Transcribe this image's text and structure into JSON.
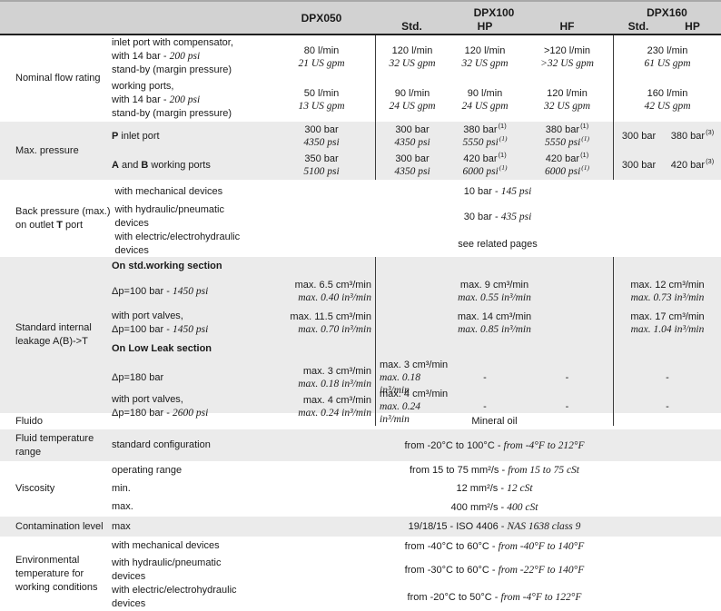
{
  "colors": {
    "header_bg": "#d2d2d2",
    "shade_bg": "#ebebeb",
    "divider": "#3c3c3c"
  },
  "header": {
    "dpx050": "DPX050",
    "dpx100": "DPX100",
    "dpx160": "DPX160",
    "sub100": [
      "Std.",
      "HP",
      "HF"
    ],
    "sub160": [
      "Std.",
      "HP"
    ]
  },
  "nominal": {
    "label": "Nominal flow rating",
    "row1": {
      "line1": "inlet port with compensator,",
      "line2_normal": "with 14 bar - ",
      "line2_italic": "200 psi",
      "line3": "stand-by (margin pressure)",
      "values": [
        {
          "metric": "80 l/min",
          "imperial": "21 US gpm"
        },
        {
          "metric": "120 l/min",
          "imperial": "32 US gpm"
        },
        {
          "metric": "120 l/min",
          "imperial": "32 US gpm"
        },
        {
          "metric": ">120 l/min",
          "imperial": ">32 US gpm"
        },
        {
          "metric": "230 l/min",
          "imperial": "61 US gpm"
        }
      ]
    },
    "row2": {
      "line1": "working ports,",
      "line2_normal": "with 14 bar - ",
      "line2_italic": "200 psi",
      "line3": "stand-by (margin pressure)",
      "values": [
        {
          "metric": "50 l/min",
          "imperial": "13 US gpm"
        },
        {
          "metric": "90 l/min",
          "imperial": "24 US gpm"
        },
        {
          "metric": "90 l/min",
          "imperial": "24 US gpm"
        },
        {
          "metric": "120 l/min",
          "imperial": "32 US gpm"
        },
        {
          "metric": "160 l/min",
          "imperial": "42 US gpm"
        }
      ]
    }
  },
  "max_pressure": {
    "label": "Max. pressure",
    "row1": {
      "label_bold": "P",
      "label_rest": " inlet port",
      "dpx050": {
        "metric": "300 bar",
        "imperial": "4350 psi"
      },
      "std": {
        "metric": "300 bar",
        "imperial": "4350 psi"
      },
      "hp": {
        "metric": "380 bar",
        "metric_sup": "(1)",
        "imperial": "5550 psi",
        "imperial_sup": "(1)"
      },
      "hf": {
        "metric": "380 bar",
        "metric_sup": "(1)",
        "imperial": "5550 psi",
        "imperial_sup": "(1)"
      },
      "dpx160_std": "300 bar",
      "dpx160_hp": "380 bar",
      "dpx160_sup": "(3)"
    },
    "row2": {
      "label_bold1": "A",
      "label_mid": " and ",
      "label_bold2": "B",
      "label_rest": " working ports",
      "dpx050": {
        "metric": "350 bar",
        "imperial": "5100 psi"
      },
      "std": {
        "metric": "300 bar",
        "imperial": "4350 psi"
      },
      "hp": {
        "metric": "420 bar",
        "metric_sup": "(1)",
        "imperial": "6000 psi",
        "imperial_sup": "(1)"
      },
      "hf": {
        "metric": "420 bar",
        "metric_sup": "(1)",
        "imperial": "6000 psi",
        "imperial_sup": "(1)"
      },
      "dpx160_std": "300 bar",
      "dpx160_hp": "420 bar",
      "dpx160_sup": "(3)"
    }
  },
  "back_pressure": {
    "label_line1": "Back pressure (max.)",
    "label_line2_pre": "on outlet ",
    "label_line2_bold": "T",
    "label_line2_post": " port",
    "rows": [
      {
        "label_lines": [
          "with mechanical devices",
          ""
        ],
        "value_normal": "10 bar - ",
        "value_italic": "145 psi"
      },
      {
        "label_lines": [
          "with hydraulic/pneumatic",
          "devices"
        ],
        "value_normal": "30 bar - ",
        "value_italic": "435 psi"
      },
      {
        "label_lines": [
          "with electric/electrohydraulic",
          "devices"
        ],
        "value_normal": "see related pages",
        "value_italic": ""
      }
    ]
  },
  "leakage": {
    "label_line1": "Standard internal",
    "label_line2": "leakage A(B)->T",
    "heading_std": "On std.working section",
    "heading_lowleak": "On Low Leak section",
    "row1": {
      "label_normal": "Δp=100 bar - ",
      "label_italic": "1450 psi",
      "dpx050": {
        "metric": "max. 6.5 cm³/min",
        "imperial": "max. 0.40 in³/min"
      },
      "dpx100": {
        "metric": "max. 9 cm³/min",
        "imperial": "max. 0.55 in³/min"
      },
      "dpx160": {
        "metric": "max. 12 cm³/min",
        "imperial": "max. 0.73 in³/min"
      }
    },
    "row2": {
      "label_line1": "with port valves,",
      "label_normal": "Δp=100 bar - ",
      "label_italic": "1450 psi",
      "dpx050": {
        "metric": "max. 11.5 cm³/min",
        "imperial": "max. 0.70 in³/min"
      },
      "dpx100": {
        "metric": "max. 14 cm³/min",
        "imperial": "max. 0.85 in³/min"
      },
      "dpx160": {
        "metric": "max. 17 cm³/min",
        "imperial": "max. 1.04 in³/min"
      }
    },
    "row3": {
      "label_normal": "Δp=180 bar",
      "label_italic": "",
      "dpx050": {
        "metric": "max. 3 cm³/min",
        "imperial": "max. 0.18 in³/min"
      },
      "std": {
        "metric": "max. 3 cm³/min",
        "imperial": "max. 0.18 in³/min"
      },
      "hp": "-",
      "hf": "-",
      "dpx160": "-"
    },
    "row4": {
      "label_line1": "with port valves,",
      "label_normal": "Δp=180 bar - ",
      "label_italic": "2600 psi",
      "dpx050": {
        "metric": "max. 4 cm³/min",
        "imperial": "max. 0.24 in³/min"
      },
      "std": {
        "metric": "max. 4 cm³/min",
        "imperial": "max. 0.24 in³/min"
      },
      "hp": "-",
      "hf": "-",
      "dpx160": "-"
    }
  },
  "fluido": {
    "label": "Fluido",
    "value": "Mineral oil"
  },
  "fluid_temp": {
    "label_line1": "Fluid temperature",
    "label_line2": "range",
    "sublabel": "standard configuration",
    "value_normal": "from -20°C to 100°C - ",
    "value_italic": "from -4°F to 212°F"
  },
  "viscosity": {
    "label": "Viscosity",
    "rows": [
      {
        "label": "operating range",
        "value_normal": "from 15 to 75 mm²/s - ",
        "value_italic": "from 15 to 75 cSt"
      },
      {
        "label": "min.",
        "value_normal": "12 mm²/s - ",
        "value_italic": "12 cSt"
      },
      {
        "label": "max.",
        "value_normal": "400 mm²/s - ",
        "value_italic": "400 cSt"
      }
    ]
  },
  "contamination": {
    "label": "Contamination level",
    "sublabel": "max",
    "value_normal": "19/18/15 - ISO 4406 - ",
    "value_italic": "NAS 1638 class 9"
  },
  "environment": {
    "label_line1": "Environmental",
    "label_line2": "temperature for",
    "label_line3": "working conditions",
    "rows": [
      {
        "label_lines": [
          "with mechanical devices",
          ""
        ],
        "value_normal": "from -40°C to 60°C - ",
        "value_italic": "from -40°F to 140°F"
      },
      {
        "label_lines": [
          "with hydraulic/pneumatic",
          "devices"
        ],
        "value_normal": "from -30°C to 60°C - ",
        "value_italic": "from -22°F to 140°F"
      },
      {
        "label_lines": [
          "with electric/electrohydraulic",
          "devices"
        ],
        "value_normal": "from -20°C to 50°C - ",
        "value_italic": "from -4°F to 122°F"
      }
    ]
  }
}
